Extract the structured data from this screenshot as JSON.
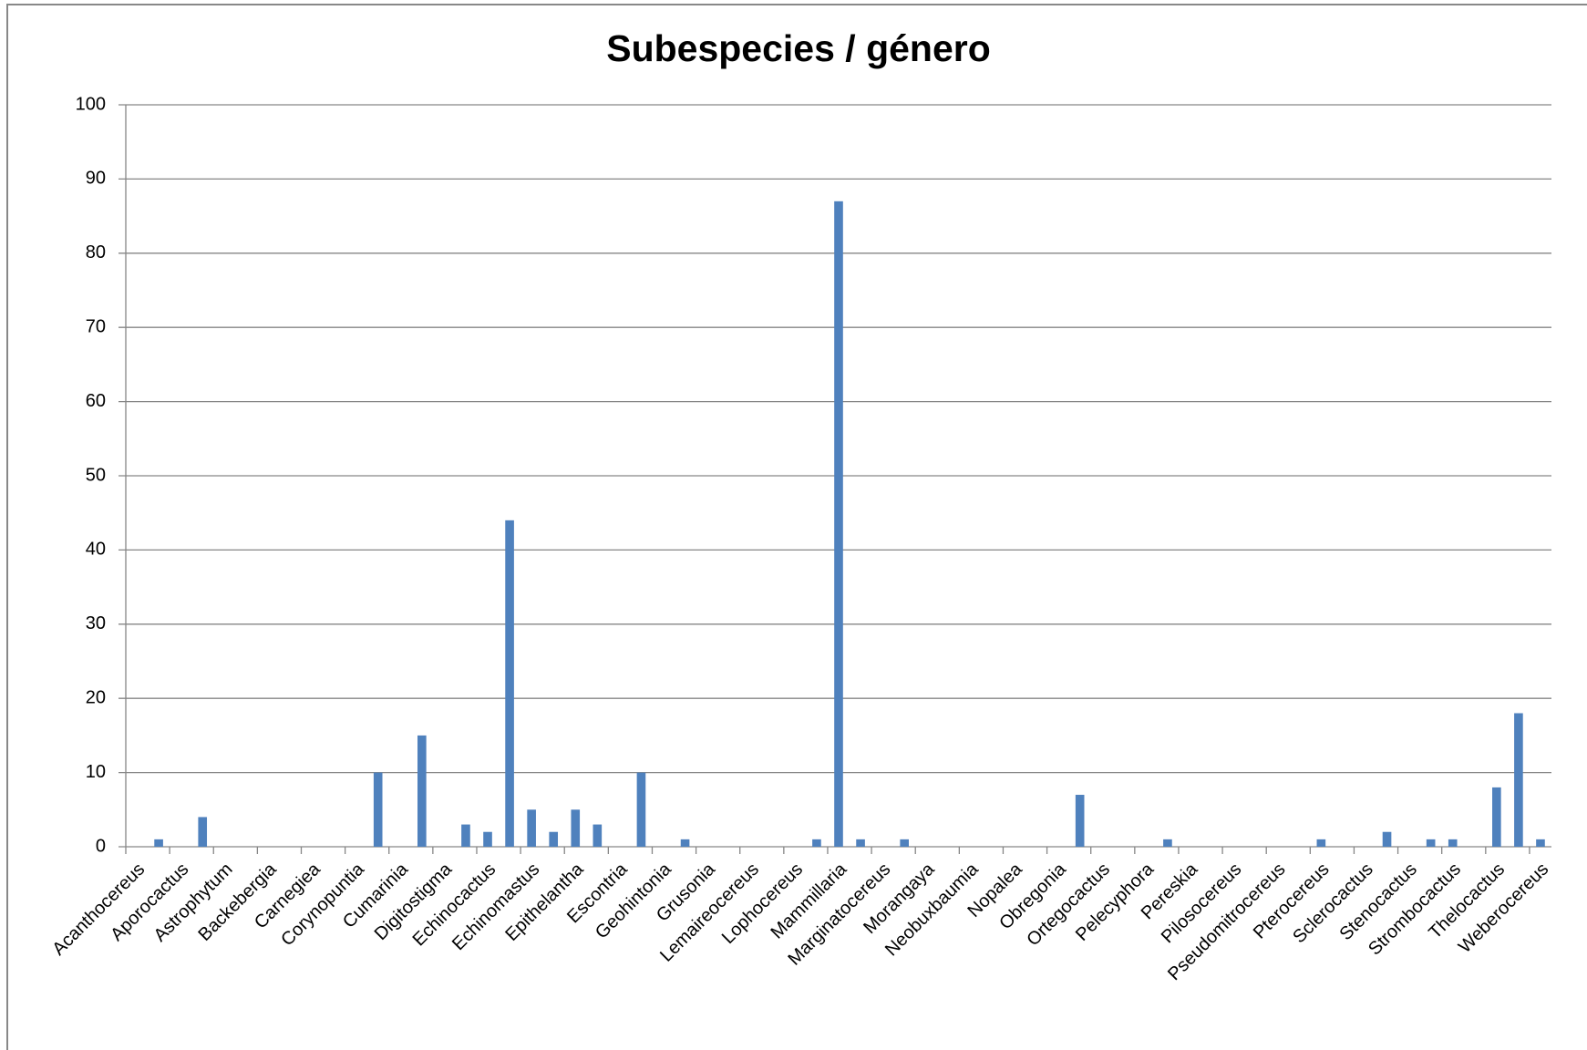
{
  "chart_data": {
    "type": "bar",
    "title": "Subespecies / género",
    "categories": [
      "Acanthocereus",
      null,
      "Aporocactus",
      null,
      "Astrophytum",
      null,
      "Backebergia",
      null,
      "Carnegiea",
      null,
      "Corynopuntia",
      null,
      "Cumarinia",
      null,
      "Digitostigma",
      null,
      "Echinocactus",
      null,
      "Echinomastus",
      null,
      "Epithelantha",
      null,
      "Escontria",
      null,
      "Geohintonia",
      null,
      "Grusonia",
      null,
      "Lemaireocereus",
      null,
      "Lophocereus",
      null,
      "Mammillaria",
      null,
      "Marginatocereus",
      null,
      "Morangaya",
      null,
      "Neobuxbaumia",
      null,
      "Nopalea",
      null,
      "Obregonia",
      null,
      "Ortegocactus",
      null,
      "Pelecyphora",
      null,
      "Pereskia",
      null,
      "Pilosocereus",
      null,
      "Pseudomitrocereus",
      null,
      "Pterocereus",
      null,
      "Sclerocactus",
      null,
      "Stenocactus",
      null,
      "Strombocactus",
      null,
      "Thelocactus",
      null,
      "Weberocereus"
    ],
    "values": [
      0,
      1,
      0,
      4,
      0,
      0,
      0,
      0,
      0,
      0,
      0,
      10,
      0,
      15,
      0,
      3,
      2,
      44,
      5,
      2,
      5,
      3,
      0,
      10,
      0,
      1,
      0,
      0,
      0,
      0,
      0,
      1,
      87,
      1,
      0,
      1,
      0,
      0,
      0,
      0,
      0,
      0,
      0,
      7,
      0,
      0,
      0,
      1,
      0,
      0,
      0,
      0,
      0,
      0,
      1,
      0,
      0,
      2,
      0,
      1,
      1,
      0,
      8,
      18,
      1
    ],
    "color": "#4f81bd",
    "ylim": [
      0,
      100
    ],
    "yticks": [
      0,
      10,
      20,
      30,
      40,
      50,
      60,
      70,
      80,
      90,
      100
    ],
    "grid": true
  }
}
